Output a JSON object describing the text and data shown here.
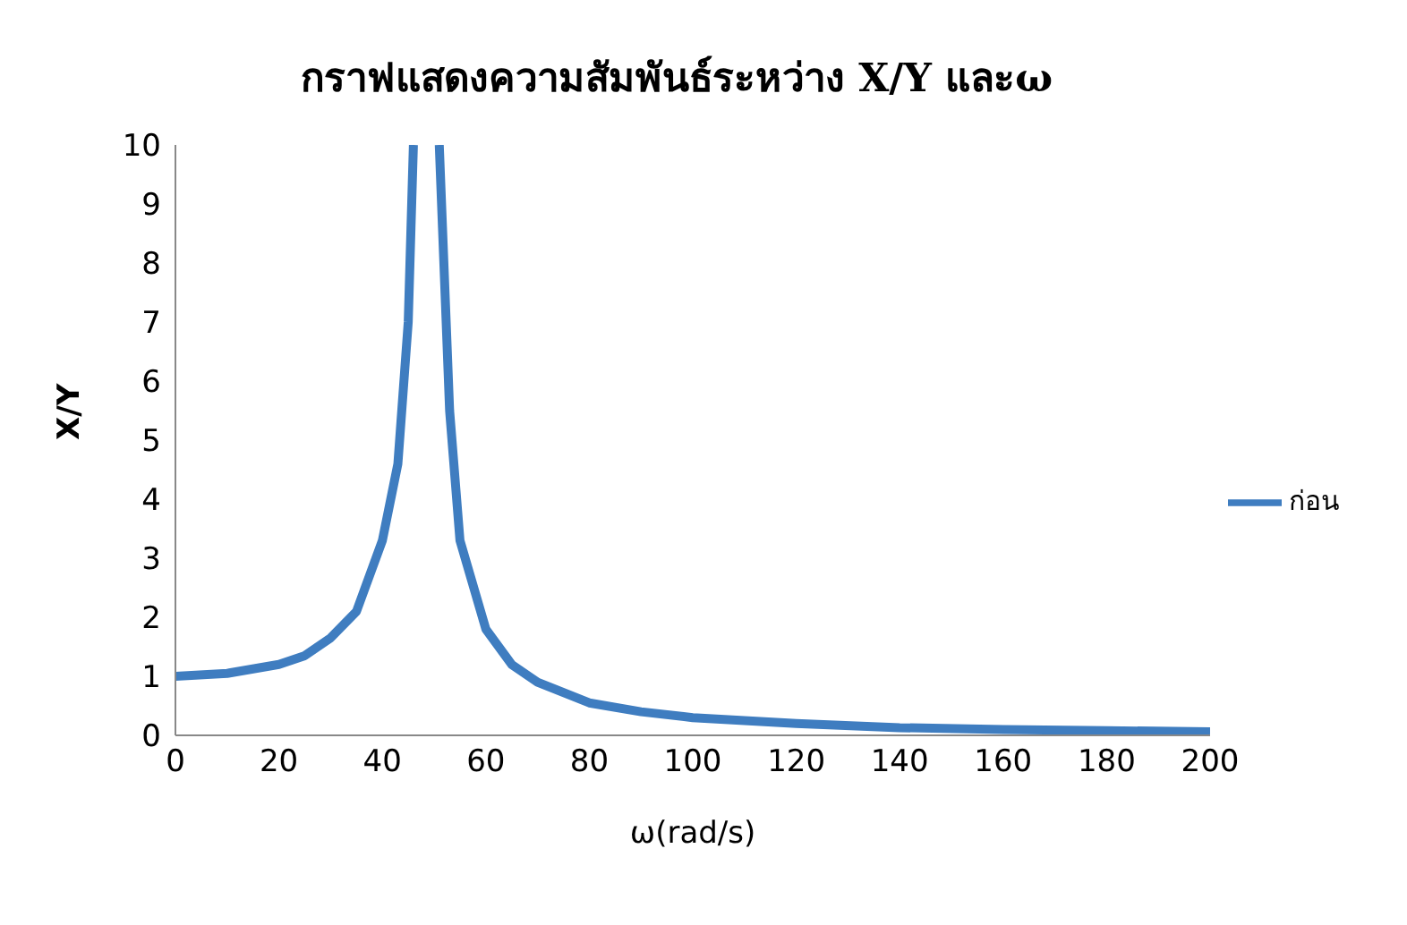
{
  "chart_data": {
    "type": "line",
    "title": "กราฟแสดงความสัมพันธ์ระหว่าง X/Y และω",
    "xlabel": "ω(rad/s)",
    "ylabel": "X/Y",
    "x": [
      0,
      10,
      20,
      25,
      30,
      35,
      40,
      43,
      45,
      46,
      48,
      51,
      53,
      55,
      60,
      65,
      70,
      80,
      90,
      100,
      120,
      140,
      160,
      180,
      200
    ],
    "series": [
      {
        "name": "ก่อน",
        "color": "#3f7dc0",
        "values": [
          1,
          1.05,
          1.2,
          1.35,
          1.65,
          2.1,
          3.3,
          4.6,
          7,
          10,
          null,
          10,
          5.5,
          3.3,
          1.8,
          1.2,
          0.9,
          0.55,
          0.4,
          0.3,
          0.2,
          0.13,
          0.1,
          0.08,
          0.06
        ]
      }
    ],
    "xlim": [
      0,
      200
    ],
    "xticks": [
      0,
      20,
      40,
      60,
      80,
      100,
      120,
      140,
      160,
      180,
      200
    ],
    "ylim": [
      0,
      10
    ],
    "yticks": [
      0,
      1,
      2,
      3,
      4,
      5,
      6,
      7,
      8,
      9,
      10
    ],
    "grid": false,
    "legend": "right",
    "marker": "none",
    "line_style": "solid"
  }
}
